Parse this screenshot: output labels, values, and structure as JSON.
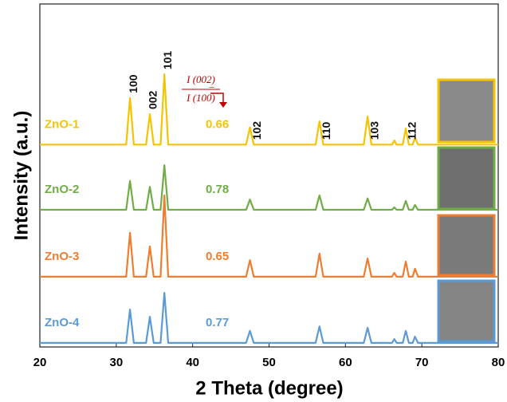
{
  "chart_data": {
    "type": "line",
    "xlabel": "2 Theta (degree)",
    "ylabel": "Intensity (a.u.)",
    "xlim": [
      20,
      80
    ],
    "xticks": [
      20,
      30,
      40,
      50,
      60,
      70,
      80
    ],
    "ylim": [
      0,
      100
    ],
    "x": [
      20,
      28,
      31.3,
      31.8,
      32.3,
      33.9,
      34.4,
      34.9,
      35.8,
      36.3,
      36.8,
      40,
      47.0,
      47.5,
      48.0,
      56.1,
      56.6,
      57.1,
      62.4,
      62.9,
      63.4,
      66.1,
      66.4,
      66.7,
      67.5,
      67.9,
      68.3,
      68.8,
      69.1,
      69.5,
      72,
      80
    ],
    "series": [
      {
        "name": "ZnO-1",
        "color": "#f5c400",
        "ratio": 0.66,
        "values": [
          59,
          59,
          59,
          72.6,
          59,
          59,
          67.9,
          59,
          59,
          79.5,
          59,
          59,
          59,
          64,
          59,
          59,
          65.8,
          59,
          59,
          67.2,
          59,
          59,
          60.2,
          59,
          59,
          63.7,
          59,
          59,
          61,
          59,
          59,
          59
        ]
      },
      {
        "name": "ZnO-2",
        "color": "#70ad47",
        "ratio": 0.78,
        "values": [
          40,
          40,
          40,
          48.4,
          40,
          40,
          46.7,
          40,
          40,
          53,
          40,
          40,
          40,
          43,
          40,
          40,
          44.2,
          40,
          40,
          43.3,
          40,
          40,
          40.7,
          40,
          40,
          42.6,
          40,
          40,
          41.4,
          40,
          40,
          40
        ]
      },
      {
        "name": "ZnO-3",
        "color": "#ed7d31",
        "ratio": 0.65,
        "values": [
          20.5,
          20.5,
          20.5,
          33.3,
          20.5,
          20.5,
          29.3,
          20.5,
          20.5,
          44.2,
          20.5,
          20.5,
          20.5,
          25.3,
          20.5,
          20.5,
          27.2,
          20.5,
          20.5,
          25.8,
          20.5,
          20.5,
          21.6,
          20.5,
          20.5,
          24.9,
          20.5,
          20.5,
          22.8,
          20.5,
          20.5,
          20.5
        ]
      },
      {
        "name": "ZnO-4",
        "color": "#5b9bd5",
        "ratio": 0.77,
        "values": [
          1.2,
          1.2,
          1.2,
          10.9,
          1.2,
          1.2,
          8.8,
          1.2,
          1.2,
          15.8,
          1.2,
          1.2,
          1.2,
          4.7,
          1.2,
          1.2,
          6,
          1.2,
          1.2,
          5.6,
          1.2,
          1.2,
          2.3,
          1.2,
          1.2,
          4.7,
          1.2,
          1.2,
          3,
          1.2,
          1.2,
          1.2
        ]
      }
    ],
    "peak_labels": [
      "100",
      "002",
      "101",
      "102",
      "110",
      "103",
      "112"
    ],
    "ratio_formula": {
      "numerator": "I (002)",
      "denominator": "I (100)",
      "sign": "="
    }
  }
}
